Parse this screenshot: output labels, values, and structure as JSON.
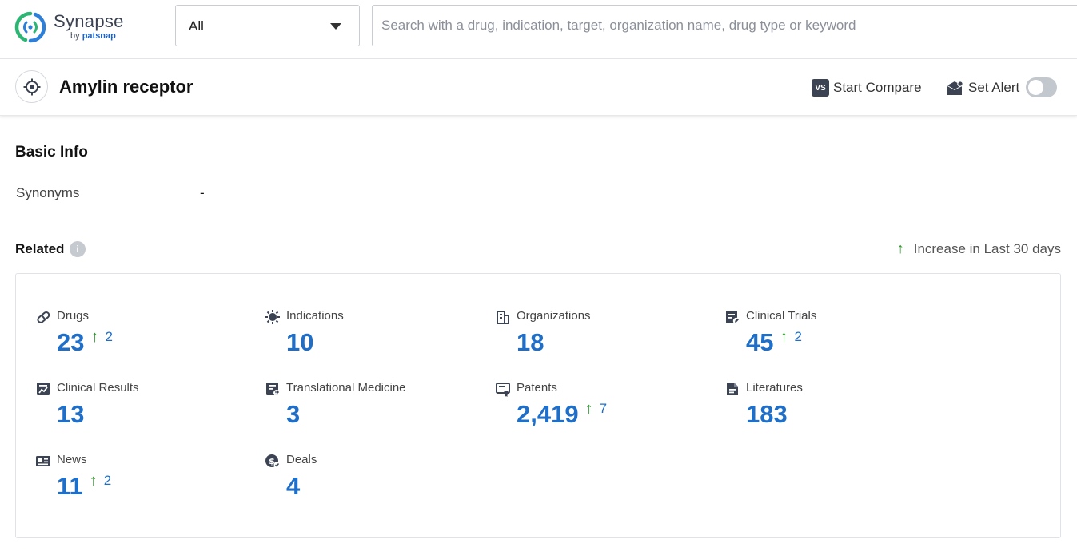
{
  "brand": {
    "name": "Synapse",
    "by_prefix": "by",
    "by_company": "patsnap",
    "colors": {
      "primary_blue": "#1f6fc9",
      "logo_green": "#2bb673",
      "logo_blue": "#2d7fd8",
      "increase_green": "#2d9a2d"
    }
  },
  "search": {
    "scope_value": "All",
    "placeholder": "Search with a drug, indication, target, organization name, drug type or keyword"
  },
  "target": {
    "icon": "target-crosshair-icon",
    "title": "Amylin receptor",
    "compare_badge": "VS",
    "compare_label": "Start Compare",
    "alert_label": "Set Alert",
    "alert_enabled": false
  },
  "basic_info": {
    "title": "Basic Info",
    "synonyms_label": "Synonyms",
    "synonyms_value": "-"
  },
  "related": {
    "title": "Related",
    "info_icon": "i",
    "legend_arrow": "↑",
    "legend_text": "Increase in Last 30 days",
    "items": [
      {
        "name": "Drugs",
        "icon": "pill-icon",
        "value": "23",
        "delta": "2"
      },
      {
        "name": "Indications",
        "icon": "virus-icon",
        "value": "10",
        "delta": null
      },
      {
        "name": "Organizations",
        "icon": "building-icon",
        "value": "18",
        "delta": null
      },
      {
        "name": "Clinical Trials",
        "icon": "clipboard-edit-icon",
        "value": "45",
        "delta": "2"
      },
      {
        "name": "Clinical Results",
        "icon": "chart-doc-icon",
        "value": "13",
        "delta": null
      },
      {
        "name": "Translational Medicine",
        "icon": "doc-arrows-icon",
        "value": "3",
        "delta": null
      },
      {
        "name": "Patents",
        "icon": "patent-certificate-icon",
        "value": "2,419",
        "delta": "7"
      },
      {
        "name": "Literatures",
        "icon": "document-icon",
        "value": "183",
        "delta": null
      },
      {
        "name": "News",
        "icon": "newspaper-icon",
        "value": "11",
        "delta": "2"
      },
      {
        "name": "Deals",
        "icon": "deal-coin-icon",
        "value": "4",
        "delta": null
      }
    ]
  }
}
